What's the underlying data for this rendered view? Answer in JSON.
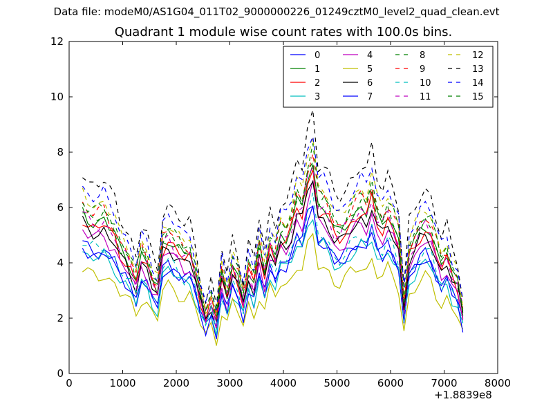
{
  "suptitle": "Data file: modeM0/AS1G04_011T02_9000000226_01249cztM0_level2_quad_clean.evt",
  "chart_data": {
    "type": "line",
    "title": "Quadrant 1 module wise count rates with 100.0s bins.",
    "xlabel": "",
    "ylabel": "",
    "x_offset_label": "+1.8839e8",
    "xlim": [
      0,
      8000
    ],
    "ylim": [
      0,
      12
    ],
    "x_ticks": [
      0,
      1000,
      2000,
      3000,
      4000,
      5000,
      6000,
      7000,
      8000
    ],
    "y_ticks": [
      0,
      2,
      4,
      6,
      8,
      10,
      12
    ],
    "grid": false,
    "legend_position": "top-right",
    "legend_columns": 4,
    "x": [
      250,
      350,
      450,
      550,
      650,
      750,
      850,
      950,
      1050,
      1150,
      1250,
      1350,
      1450,
      1550,
      1650,
      1750,
      1850,
      1950,
      2050,
      2150,
      2250,
      2350,
      2450,
      2550,
      2650,
      2750,
      2850,
      2950,
      3050,
      3150,
      3250,
      3350,
      3450,
      3550,
      3650,
      3750,
      3850,
      3950,
      4050,
      4150,
      4250,
      4350,
      4450,
      4550,
      4650,
      4750,
      4850,
      4950,
      5050,
      5150,
      5250,
      5350,
      5450,
      5550,
      5650,
      5750,
      5850,
      5950,
      6050,
      6150,
      6250,
      6350,
      6450,
      6550,
      6650,
      6750,
      6850,
      6950,
      7050,
      7150,
      7250,
      7350
    ],
    "base_series": [
      5.2,
      5.0,
      4.9,
      4.9,
      5.0,
      4.7,
      4.5,
      4.0,
      3.8,
      3.5,
      3.0,
      3.8,
      3.6,
      3.0,
      2.7,
      4.2,
      4.4,
      4.2,
      4.0,
      3.8,
      3.9,
      3.3,
      2.5,
      1.9,
      2.4,
      1.7,
      3.2,
      2.5,
      3.5,
      3.1,
      2.4,
      3.4,
      2.9,
      4.0,
      3.2,
      4.2,
      3.8,
      4.5,
      4.4,
      4.8,
      5.5,
      5.3,
      6.3,
      6.8,
      5.4,
      5.4,
      5.1,
      4.6,
      4.5,
      4.7,
      5.0,
      5.2,
      5.4,
      5.2,
      5.8,
      5.0,
      4.8,
      5.2,
      4.8,
      4.3,
      2.2,
      3.9,
      4.2,
      4.6,
      4.8,
      4.6,
      4.0,
      3.5,
      3.8,
      3.2,
      2.9,
      2.0
    ],
    "series": [
      {
        "name": "0",
        "color": "#0000ff",
        "dash": false,
        "level": 0.9
      },
      {
        "name": "1",
        "color": "#008000",
        "dash": false,
        "level": 1.12
      },
      {
        "name": "2",
        "color": "#ff0000",
        "dash": false,
        "level": 1.08
      },
      {
        "name": "3",
        "color": "#00bfbf",
        "dash": false,
        "level": 0.85
      },
      {
        "name": "4",
        "color": "#bf00bf",
        "dash": false,
        "level": 1.0
      },
      {
        "name": "5",
        "color": "#bfbf00",
        "dash": false,
        "level": 0.72
      },
      {
        "name": "6",
        "color": "#000000",
        "dash": false,
        "level": 1.04
      },
      {
        "name": "7",
        "color": "#0000ff",
        "dash": false,
        "level": 0.88
      },
      {
        "name": "8",
        "color": "#008000",
        "dash": true,
        "level": 1.15
      },
      {
        "name": "9",
        "color": "#ff0000",
        "dash": true,
        "level": 1.18
      },
      {
        "name": "10",
        "color": "#00bfbf",
        "dash": true,
        "level": 0.92
      },
      {
        "name": "11",
        "color": "#bf00bf",
        "dash": true,
        "level": 1.1
      },
      {
        "name": "12",
        "color": "#bfbf00",
        "dash": true,
        "level": 1.25
      },
      {
        "name": "13",
        "color": "#000000",
        "dash": true,
        "level": 1.4
      },
      {
        "name": "14",
        "color": "#0000ff",
        "dash": true,
        "level": 1.3
      },
      {
        "name": "15",
        "color": "#008000",
        "dash": true,
        "level": 1.2
      }
    ]
  }
}
